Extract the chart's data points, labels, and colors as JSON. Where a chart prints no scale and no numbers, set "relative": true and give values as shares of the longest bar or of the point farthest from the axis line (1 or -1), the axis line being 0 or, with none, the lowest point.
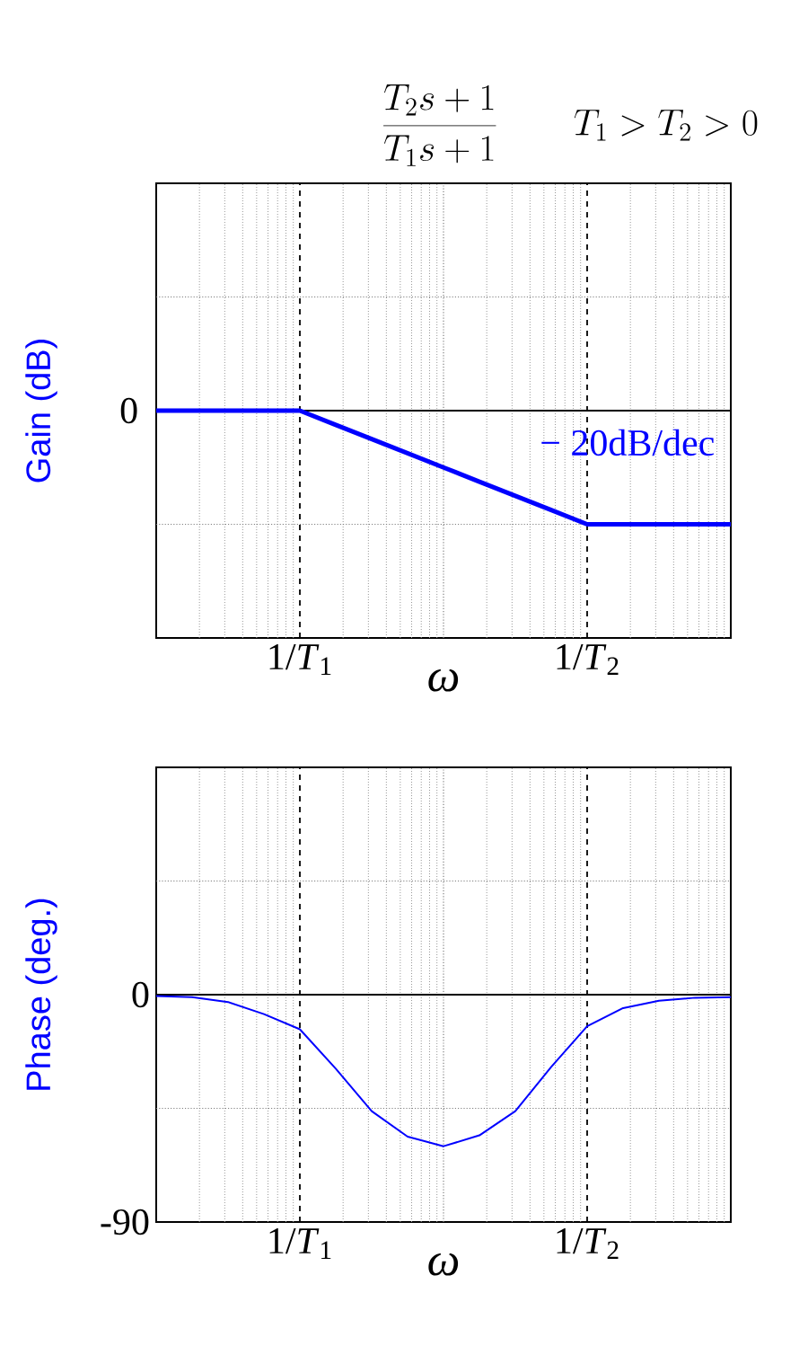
{
  "chart_data": [
    {
      "type": "line",
      "title": "\\frac{T_2 s+1}{T_1 s+1}\\qquad T_1>T_2>0",
      "xlabel": "ω",
      "ylabel": "Gain (dB)",
      "relative": true,
      "grid": true,
      "marker": "none",
      "categories": [
        null,
        null,
        null,
        null,
        "1/*T*$_{1}$",
        null,
        null,
        null,
        null,
        null,
        null,
        null,
        "1/*T*$_{2}$",
        null,
        null,
        null,
        null
      ],
      "series": [
        {
          "color": "#0000ff",
          "values": [
            0,
            0,
            0,
            0,
            0,
            -0.125,
            -0.25,
            -0.375,
            -0.5,
            -0.625,
            -0.75,
            -0.875,
            -1,
            -1,
            -1,
            -1,
            -1
          ]
        }
      ],
      "ref_lines": [
        {
          "axis": "y",
          "value": 0,
          "line_style": "solid"
        }
      ],
      "annotations": [
        "− 20dB/dec",
        "0"
      ]
    },
    {
      "type": "line",
      "xlabel": "ω",
      "ylabel": "Phase (deg.)",
      "grid": true,
      "marker": "none",
      "categories": [
        null,
        null,
        null,
        null,
        "1/*T*$_{1}$",
        null,
        null,
        null,
        null,
        null,
        null,
        null,
        "1/*T*$_{2}$",
        null,
        null,
        null,
        null
      ],
      "ylim": [
        -90,
        90
      ],
      "yticks": [
        {
          "value": -90,
          "label": "-90"
        },
        {
          "value": -45,
          "label": null
        },
        0,
        {
          "value": 45,
          "label": null
        }
      ],
      "series": [
        {
          "color": "#0000ff",
          "values": [
            -0.5,
            -1,
            -2.9,
            -7.7,
            -13.7,
            -29.3,
            -46.1,
            -56.2,
            -60,
            -55.7,
            -46.1,
            -28.6,
            -12.5,
            -5.3,
            -2.4,
            -1.2,
            -1
          ]
        }
      ],
      "ref_lines": [
        {
          "axis": "y",
          "value": 0,
          "line_style": "solid"
        }
      ]
    }
  ]
}
